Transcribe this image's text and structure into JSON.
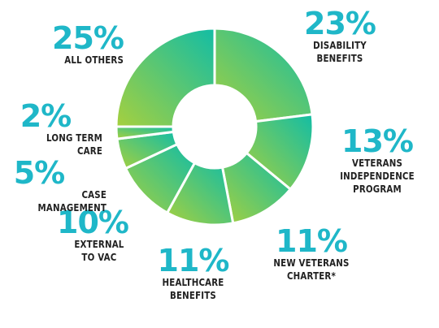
{
  "chart_data": {
    "type": "pie",
    "donut": true,
    "slices": [
      {
        "label": "DISABILITY\nBENEFITS",
        "pct_text": "23%",
        "value": 23
      },
      {
        "label": "VETERANS\nINDEPENDENCE\nPROGRAM",
        "pct_text": "13%",
        "value": 13
      },
      {
        "label": "NEW VETERANS\nCHARTER*",
        "pct_text": "11%",
        "value": 11
      },
      {
        "label": "HEALTHCARE\nBENEFITS",
        "pct_text": "11%",
        "value": 11
      },
      {
        "label": "EXTERNAL\nTO VAC",
        "pct_text": "10%",
        "value": 10
      },
      {
        "label": "CASE MANAGEMENT",
        "pct_text": "5%",
        "value": 5
      },
      {
        "label": "LONG TERM CARE",
        "pct_text": "2%",
        "value": 2
      },
      {
        "label": "ALL OTHERS",
        "pct_text": "25%",
        "value": 25
      }
    ],
    "gradient_colors": [
      "#12bda5",
      "#a6d03e"
    ],
    "label_color": "#1fb7c8"
  }
}
